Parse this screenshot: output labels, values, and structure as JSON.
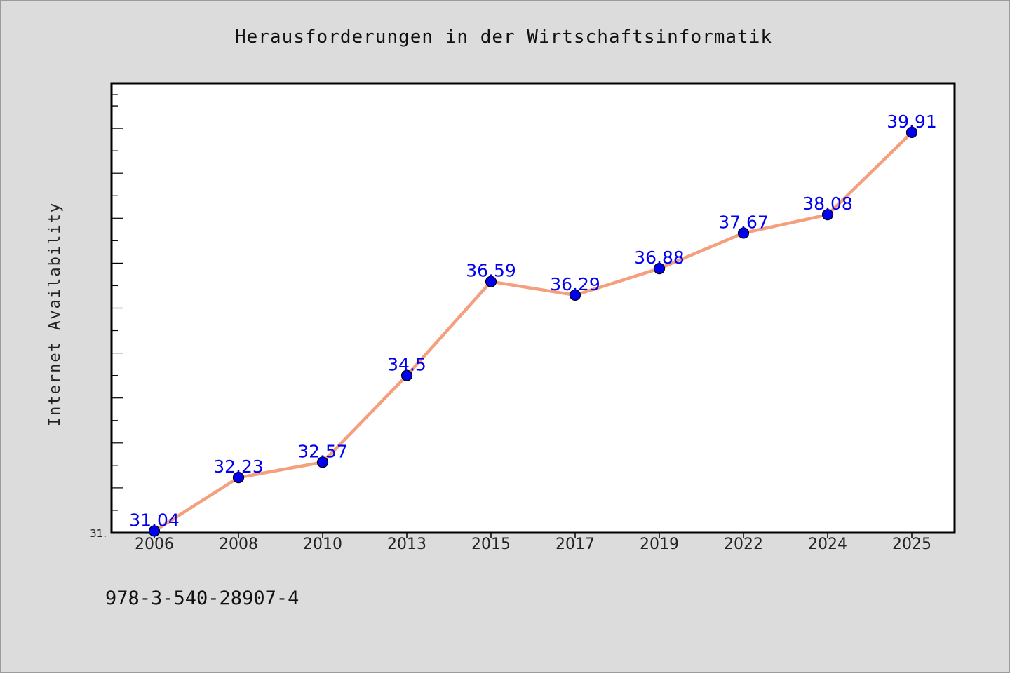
{
  "chart_data": {
    "type": "line",
    "title": "Herausforderungen in der Wirtschaftsinformatik",
    "ylabel": "Internet Availability",
    "xlabel": "",
    "categories": [
      "2006",
      "2008",
      "2010",
      "2013",
      "2015",
      "2017",
      "2019",
      "2022",
      "2024",
      "2025"
    ],
    "series": [
      {
        "values": [
          31.04,
          32.23,
          32.57,
          34.5,
          36.59,
          36.29,
          36.88,
          37.67,
          38.08,
          39.91
        ],
        "labels": [
          "31.04",
          "32.23",
          "32.57",
          "34.5",
          "36.59",
          "36.29",
          "36.88",
          "37.67",
          "38.08",
          "39.91"
        ]
      }
    ],
    "ylim": [
      31.0,
      41.0
    ],
    "ymin_label": "31.",
    "line_color": "#f4a07f",
    "marker_color": "#0000ee",
    "label_color": "#0000ee",
    "background": "#dcdcdc",
    "plot_background": "#ffffff",
    "grid": false,
    "legend": "none"
  },
  "footer": {
    "text": "978-3-540-28907-4"
  }
}
